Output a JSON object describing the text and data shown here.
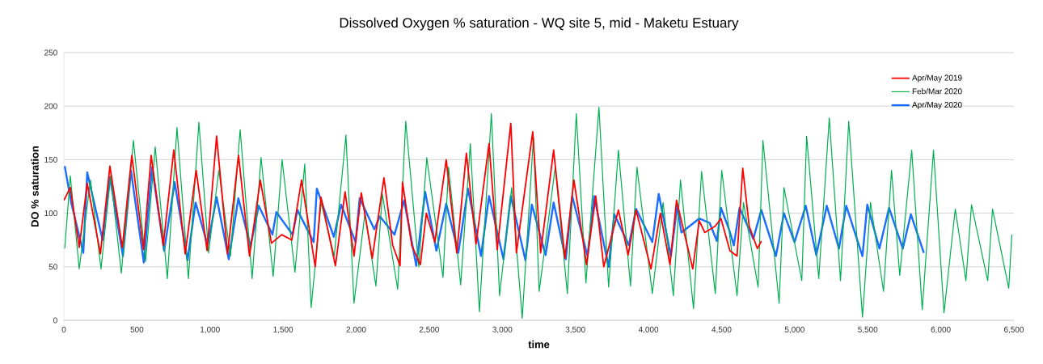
{
  "chart_data": {
    "type": "line",
    "title": "Dissolved Oxygen % saturation - WQ site 5, mid - Maketu Estuary",
    "xlabel": "time",
    "ylabel": "DO % saturation",
    "xlim": [
      0,
      6500
    ],
    "ylim": [
      0,
      250
    ],
    "xticks": [
      0,
      500,
      {
        "value": 1000,
        "label": "1,000"
      },
      {
        "value": 1500,
        "label": "1,500"
      },
      {
        "value": 2000,
        "label": "2,000"
      },
      {
        "value": 2500,
        "label": "2,500"
      },
      {
        "value": 3000,
        "label": "3,000"
      },
      {
        "value": 3500,
        "label": "3,500"
      },
      {
        "value": 4000,
        "label": "4,000"
      },
      {
        "value": 4500,
        "label": "4,500"
      },
      {
        "value": 5000,
        "label": "5,000"
      },
      {
        "value": 5500,
        "label": "5,500"
      },
      {
        "value": 6000,
        "label": "6,000"
      },
      {
        "value": 6500,
        "label": "6,500"
      }
    ],
    "yticks": [
      0,
      50,
      100,
      150,
      200,
      250
    ],
    "grid": "y",
    "legend": "top right",
    "series": [
      {
        "name": "Apr/May 2019",
        "color": "#ff0000",
        "x": [
          0,
          44,
          105,
          160,
          250,
          315,
          400,
          465,
          545,
          597,
          680,
          752,
          830,
          905,
          980,
          1045,
          1120,
          1195,
          1270,
          1344,
          1420,
          1490,
          1560,
          1626,
          1720,
          1759,
          1858,
          1924,
          1985,
          2035,
          2110,
          2190,
          2250,
          2300,
          2317,
          2380,
          2439,
          2480,
          2538,
          2616,
          2688,
          2754,
          2820,
          2909,
          2965,
          3058,
          3096,
          3208,
          3262,
          3351,
          3428,
          3490,
          3576,
          3639,
          3694,
          3794,
          3861,
          3915,
          4017,
          4081,
          4147,
          4192,
          4303,
          4347,
          4385,
          4457,
          4496,
          4557,
          4606,
          4645,
          4689,
          4745,
          4772
        ],
        "values": [
          112,
          124,
          68,
          128,
          62,
          144,
          68,
          154,
          66,
          154,
          70,
          159,
          62,
          140,
          65,
          172,
          62,
          154,
          60,
          131,
          72,
          80,
          75,
          131,
          50,
          115,
          51,
          120,
          60,
          119,
          58,
          133,
          70,
          51,
          129,
          70,
          52,
          100,
          73,
          150,
          63,
          156,
          71,
          165,
          66,
          184,
          63,
          176,
          63,
          159,
          58,
          131,
          52,
          116,
          50,
          103,
          61,
          103,
          48,
          100,
          52,
          112,
          48,
          93,
          82,
          88,
          95,
          65,
          60,
          142,
          88,
          67,
          74
        ]
      },
      {
        "name": "Feb/Mar 2020",
        "color": "#00b050",
        "x": [
          6,
          44,
          105,
          182,
          254,
          320,
          393,
          476,
          559,
          625,
          708,
          774,
          852,
          924,
          990,
          1060,
          1140,
          1206,
          1288,
          1349,
          1432,
          1493,
          1581,
          1648,
          1692,
          1760,
          1850,
          1930,
          1985,
          2060,
          2135,
          2179,
          2284,
          2339,
          2428,
          2483,
          2594,
          2632,
          2715,
          2781,
          2843,
          2925,
          2981,
          3064,
          3136,
          3213,
          3252,
          3362,
          3445,
          3506,
          3572,
          3661,
          3727,
          3794,
          3877,
          3921,
          4026,
          4100,
          4170,
          4219,
          4308,
          4363,
          4457,
          4501,
          4606,
          4650,
          4750,
          4783,
          4894,
          4927,
          5049,
          5082,
          5165,
          5237,
          5314,
          5370,
          5464,
          5519,
          5608,
          5663,
          5719,
          5801,
          5873,
          5950,
          6022,
          6099,
          6172,
          6210,
          6321,
          6354,
          6465,
          6486
        ],
        "values": [
          67,
          135,
          48,
          131,
          48,
          135,
          44,
          168,
          55,
          162,
          39,
          180,
          39,
          185,
          63,
          140,
          60,
          178,
          39,
          152,
          41,
          150,
          45,
          146,
          12,
          110,
          60,
          173,
          16,
          100,
          32,
          118,
          29,
          186,
          50,
          152,
          40,
          143,
          33,
          165,
          8,
          193,
          23,
          124,
          2,
          171,
          27,
          143,
          25,
          193,
          35,
          199,
          31,
          159,
          32,
          143,
          25,
          110,
          23,
          131,
          11,
          139,
          25,
          140,
          23,
          110,
          31,
          168,
          16,
          124,
          37,
          172,
          39,
          189,
          37,
          186,
          3,
          110,
          27,
          140,
          42,
          159,
          10,
          159,
          7,
          104,
          37,
          108,
          37,
          104,
          30,
          80
        ]
      },
      {
        "name": "Apr/May 2020",
        "color": "#1a6dff",
        "x": [
          6,
          50,
          133,
          160,
          265,
          315,
          404,
          459,
          547,
          603,
          686,
          758,
          846,
          901,
          984,
          1045,
          1128,
          1194,
          1277,
          1333,
          1427,
          1454,
          1565,
          1598,
          1709,
          1731,
          1847,
          1897,
          1996,
          2024,
          2124,
          2162,
          2262,
          2328,
          2411,
          2472,
          2549,
          2616,
          2699,
          2765,
          2854,
          2909,
          3008,
          3058,
          3158,
          3202,
          3296,
          3351,
          3434,
          3478,
          3583,
          3628,
          3727,
          3766,
          3866,
          3915,
          4026,
          4070,
          4153,
          4197,
          4225,
          4347,
          4418,
          4468,
          4496,
          4551,
          4584,
          4623,
          4717,
          4772,
          4872,
          4927,
          4999,
          5076,
          5148,
          5220,
          5303,
          5353,
          5464,
          5497,
          5580,
          5646,
          5740,
          5795,
          5884
        ],
        "values": [
          144,
          110,
          63,
          138,
          75,
          134,
          60,
          140,
          54,
          143,
          65,
          129,
          56,
          110,
          70,
          115,
          57,
          114,
          69,
          107,
          80,
          101,
          80,
          103,
          73,
          123,
          78,
          108,
          73,
          114,
          85,
          97,
          80,
          112,
          51,
          120,
          65,
          109,
          63,
          123,
          60,
          116,
          57,
          116,
          56,
          108,
          61,
          110,
          57,
          116,
          60,
          116,
          50,
          99,
          70,
          104,
          73,
          118,
          60,
          107,
          82,
          95,
          91,
          74,
          105,
          85,
          70,
          105,
          76,
          103,
          60,
          100,
          73,
          107,
          61,
          107,
          67,
          107,
          60,
          108,
          67,
          105,
          67,
          99,
          63
        ]
      }
    ]
  }
}
